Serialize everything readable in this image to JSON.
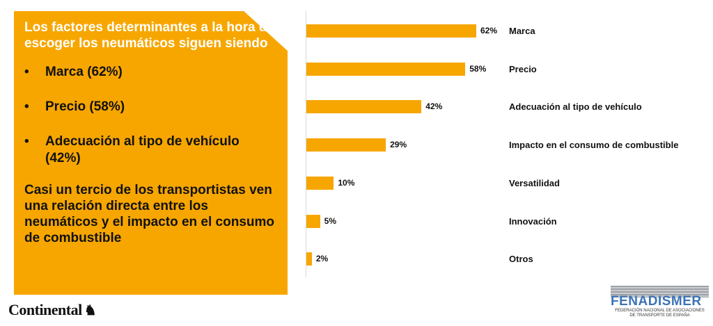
{
  "panel": {
    "intro": "Los factores determinantes a la hora de escoger los neumáticos siguen siendo",
    "bullet_symbol": "•",
    "bullets": [
      "Marca (62%)",
      "Precio (58%)",
      "Adecuación al tipo de vehículo (42%)"
    ],
    "closing": "Casi un tercio de los transportistas ven una relación directa entre los neumáticos y el impacto en el consumo de combustible"
  },
  "chart_data": {
    "type": "bar",
    "orientation": "horizontal",
    "categories": [
      "Marca",
      "Precio",
      "Adecuación al tipo de vehículo",
      "Impacto en el consumo de combustible",
      "Versatilidad",
      "Innovación",
      "Otros"
    ],
    "values": [
      62,
      58,
      42,
      29,
      10,
      5,
      2
    ],
    "value_labels": [
      "62%",
      "58%",
      "42%",
      "29%",
      "10%",
      "5%",
      "2%"
    ],
    "unit": "%",
    "xlim": [
      0,
      62
    ],
    "bar_color": "#f7a600"
  },
  "logos": {
    "continental": "Continental",
    "fenadismer": "FENADISMER",
    "fenadismer_sub_1": "FEDERACIÓN NACIONAL DE ASOCIACIONES",
    "fenadismer_sub_2": "DE TRANSPORTE DE ESPAÑA"
  }
}
